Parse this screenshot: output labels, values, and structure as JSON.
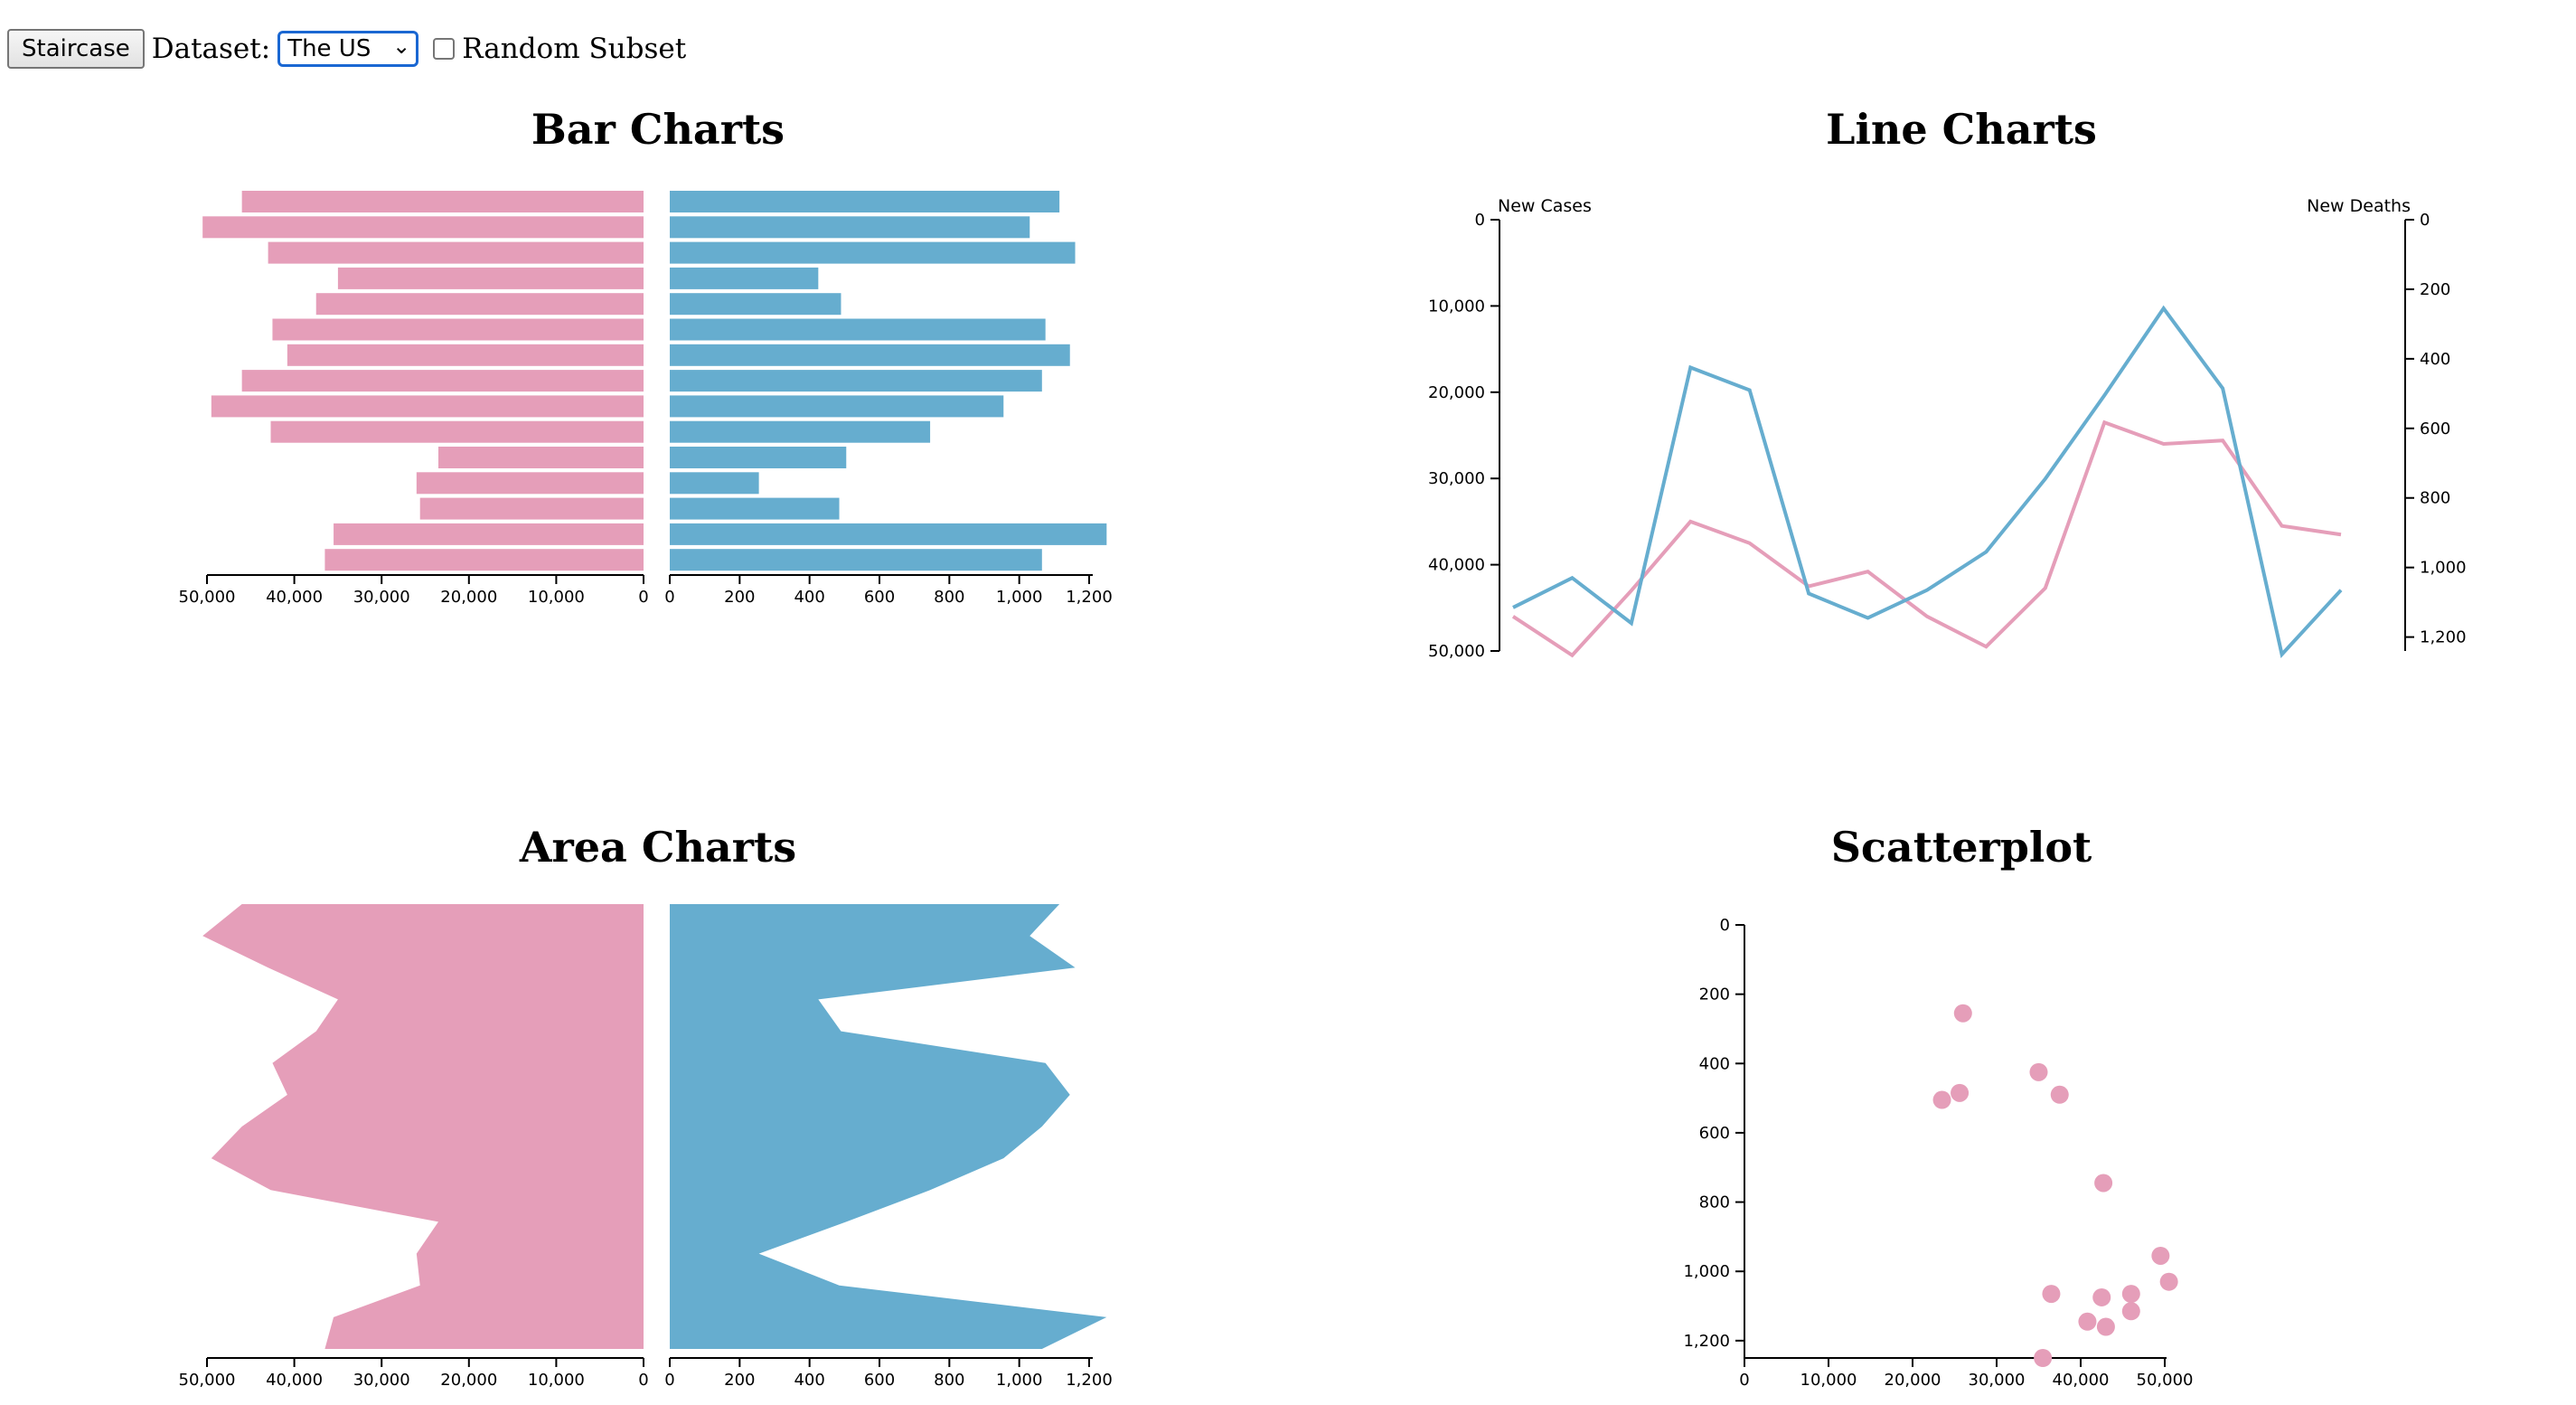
{
  "controls": {
    "button_label": "Staircase",
    "dataset_label": "Dataset:",
    "dataset_value": "The US",
    "random_subset_label": "Random Subset",
    "random_subset_checked": false
  },
  "colors": {
    "cases": "#e59eb9",
    "deaths": "#66adcf"
  },
  "panels": {
    "bar_title": "Bar Charts",
    "line_title": "Line Charts",
    "area_title": "Area Charts",
    "scatter_title": "Scatterplot"
  },
  "chart_data": [
    {
      "type": "bar",
      "title": "Bar Charts",
      "orientation": "horizontal-mirrored",
      "series": [
        {
          "name": "",
          "values": [
            46000,
            50500,
            43000,
            35000,
            37500,
            42500,
            40800,
            46000,
            49500,
            42700,
            23500,
            26000,
            25600,
            35500,
            36500
          ]
        },
        {
          "name": "",
          "values": [
            1115,
            1030,
            1160,
            425,
            490,
            1075,
            1145,
            1065,
            955,
            745,
            505,
            255,
            485,
            1250,
            1065
          ]
        }
      ],
      "left_axis": {
        "ticks": [
          50000,
          40000,
          30000,
          20000,
          10000,
          0
        ],
        "range": [
          0,
          50000
        ]
      },
      "right_axis": {
        "ticks": [
          0,
          200,
          400,
          600,
          800,
          1000,
          1200
        ],
        "range": [
          0,
          1200
        ]
      }
    },
    {
      "type": "line",
      "title": "Line Charts",
      "left_axis_label": "New Cases",
      "right_axis_label": "New Deaths",
      "left_axis": {
        "ticks": [
          0,
          10000,
          20000,
          30000,
          40000,
          50000
        ],
        "range": [
          0,
          50000
        ],
        "inverted": true
      },
      "right_axis": {
        "ticks": [
          0,
          200,
          400,
          600,
          800,
          1000,
          1200
        ],
        "range": [
          0,
          1240
        ],
        "inverted": true
      },
      "series": [
        {
          "name": "New Cases",
          "values": [
            46000,
            50500,
            43000,
            35000,
            37500,
            42500,
            40800,
            46000,
            49500,
            42700,
            23500,
            26000,
            25600,
            35500,
            36500
          ]
        },
        {
          "name": "New Deaths",
          "values": [
            1115,
            1030,
            1160,
            425,
            490,
            1075,
            1145,
            1065,
            955,
            745,
            505,
            255,
            485,
            1250,
            1065
          ]
        }
      ]
    },
    {
      "type": "area",
      "title": "Area Charts",
      "series": [
        {
          "name": "",
          "values": [
            46000,
            50500,
            43000,
            35000,
            37500,
            42500,
            40800,
            46000,
            49500,
            42700,
            23500,
            26000,
            25600,
            35500,
            36500
          ]
        },
        {
          "name": "",
          "values": [
            1115,
            1030,
            1160,
            425,
            490,
            1075,
            1145,
            1065,
            955,
            745,
            505,
            255,
            485,
            1250,
            1065
          ]
        }
      ],
      "left_axis": {
        "ticks": [
          50000,
          40000,
          30000,
          20000,
          10000,
          0
        ],
        "range": [
          0,
          50000
        ]
      },
      "right_axis": {
        "ticks": [
          0,
          200,
          400,
          600,
          800,
          1000,
          1200
        ],
        "range": [
          0,
          1200
        ]
      }
    },
    {
      "type": "scatter",
      "title": "Scatterplot",
      "x_axis": {
        "ticks": [
          0,
          10000,
          20000,
          30000,
          40000,
          50000
        ],
        "range": [
          0,
          50000
        ]
      },
      "y_axis": {
        "ticks": [
          0,
          200,
          400,
          600,
          800,
          1000,
          1200
        ],
        "range": [
          0,
          1250
        ],
        "inverted": true
      },
      "points": [
        {
          "x": 26000,
          "y": 255
        },
        {
          "x": 35000,
          "y": 425
        },
        {
          "x": 37500,
          "y": 490
        },
        {
          "x": 25600,
          "y": 485
        },
        {
          "x": 23500,
          "y": 505
        },
        {
          "x": 42700,
          "y": 745
        },
        {
          "x": 49500,
          "y": 955
        },
        {
          "x": 50500,
          "y": 1030
        },
        {
          "x": 36500,
          "y": 1065
        },
        {
          "x": 46000,
          "y": 1065
        },
        {
          "x": 42500,
          "y": 1075
        },
        {
          "x": 46000,
          "y": 1115
        },
        {
          "x": 40800,
          "y": 1145
        },
        {
          "x": 43000,
          "y": 1160
        },
        {
          "x": 35500,
          "y": 1250
        }
      ]
    }
  ]
}
